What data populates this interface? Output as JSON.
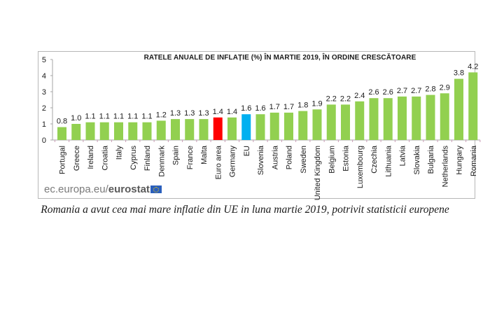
{
  "chart_data": {
    "type": "bar",
    "title": "RATELE ANUALE DE INFLAȚIE (%) ÎN MARTIE 2019, ÎN ORDINE CRESCĂTOARE",
    "xlabel": "",
    "ylabel": "",
    "ylim": [
      0,
      5
    ],
    "yticks": [
      0,
      1,
      2,
      3,
      4,
      5
    ],
    "grid": false,
    "legend": "none",
    "categories": [
      "Portugal",
      "Greece",
      "Ireland",
      "Croatia",
      "Italy",
      "Cyprus",
      "Finland",
      "Denmark",
      "Spain",
      "France",
      "Malta",
      "Euro area",
      "Germany",
      "EU",
      "Slovenia",
      "Austria",
      "Poland",
      "Sweden",
      "United Kingdom",
      "Belgium",
      "Estonia",
      "Luxembourg",
      "Czechia",
      "Lithuania",
      "Latvia",
      "Slovakia",
      "Bulgaria",
      "Netherlands",
      "Hungary",
      "Romania"
    ],
    "values": [
      0.8,
      1.0,
      1.1,
      1.1,
      1.1,
      1.1,
      1.1,
      1.2,
      1.3,
      1.3,
      1.3,
      1.4,
      1.4,
      1.6,
      1.6,
      1.7,
      1.7,
      1.8,
      1.9,
      2.2,
      2.2,
      2.4,
      2.6,
      2.6,
      2.7,
      2.7,
      2.8,
      2.9,
      3.8,
      4.2
    ],
    "data_labels": [
      "0.8",
      "1.0",
      "1.1",
      "1.1",
      "1.1",
      "1.1",
      "1.1",
      "1.2",
      "1.3",
      "1.3",
      "1.3",
      "1.4",
      "1.4",
      "1.6",
      "1.6",
      "1.7",
      "1.7",
      "1.8",
      "1.9",
      "2.2",
      "2.2",
      "2.4",
      "2.6",
      "2.6",
      "2.7",
      "2.7",
      "2.8",
      "2.9",
      "3.8",
      "4.2"
    ],
    "colors": {
      "default": "#92d050",
      "Euro area": "#ff0000",
      "EU": "#00b0f0"
    }
  },
  "source": {
    "prefix": "ec.europa.eu/",
    "brand": "eurostat"
  },
  "caption": "Romania a avut cea mai mare inflatie din UE in luna martie 2019, potrivit statisticii europene"
}
